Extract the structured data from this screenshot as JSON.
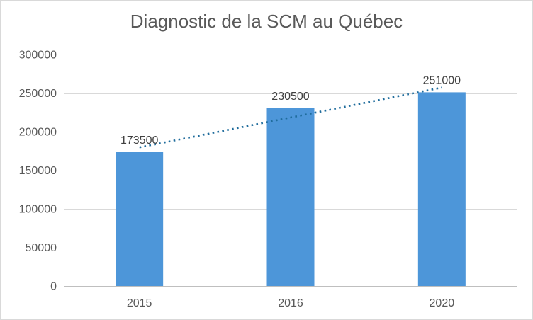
{
  "chart_data": {
    "type": "bar",
    "title": "Diagnostic de la SCM au Québec",
    "categories": [
      "2015",
      "2016",
      "2020"
    ],
    "values": [
      173500,
      230500,
      251000
    ],
    "data_labels": [
      "173500",
      "230500",
      "251000"
    ],
    "xlabel": "",
    "ylabel": "",
    "ylim": [
      0,
      300000
    ],
    "ytick_step": 50000,
    "yticks": [
      "0",
      "50000",
      "100000",
      "150000",
      "200000",
      "250000",
      "300000"
    ],
    "grid": true,
    "legend": "none",
    "trendline": {
      "style": "dotted",
      "type": "linear",
      "y_start": 179583,
      "y_end": 257083
    },
    "colors": {
      "bar": "#4D96D9",
      "trendline": "#1F6C9C",
      "gridline": "#D9D9D9",
      "axis_line": "#BFBFBF",
      "tick_text": "#595959",
      "title_text": "#595959",
      "data_label_text": "#404040",
      "border": "#D9D9D9",
      "background": "#FFFFFF"
    }
  }
}
